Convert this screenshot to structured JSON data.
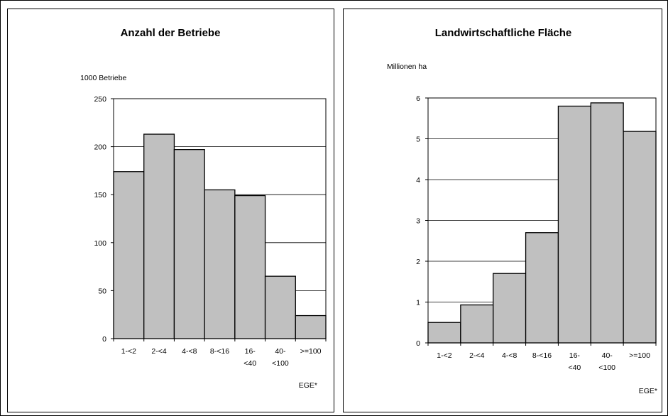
{
  "chart_data": [
    {
      "type": "bar",
      "title": "Anzahl der Betriebe",
      "ylabel": "1000 Betriebe",
      "xlabel": "EGE*",
      "categories": [
        [
          "1-<2"
        ],
        [
          "2-<4"
        ],
        [
          "4-<8"
        ],
        [
          "8-<16"
        ],
        [
          "16-",
          "<40"
        ],
        [
          "40-",
          "<100"
        ],
        [
          ">=100"
        ]
      ],
      "values": [
        174,
        213,
        197,
        155,
        149,
        65,
        24
      ],
      "ylim": [
        0,
        250
      ],
      "yticks": [
        "0",
        "50",
        "100",
        "150",
        "200",
        "250"
      ],
      "grid": true,
      "bar_color": "#c0c0c0"
    },
    {
      "type": "bar",
      "title": "Landwirtschaftliche Fläche",
      "ylabel": "Millionen ha",
      "xlabel": "EGE*",
      "categories": [
        [
          "1-<2"
        ],
        [
          "2-<4"
        ],
        [
          "4-<8"
        ],
        [
          "8-<16"
        ],
        [
          "16-",
          "<40"
        ],
        [
          "40-",
          "<100"
        ],
        [
          ">=100"
        ]
      ],
      "values": [
        0.5,
        0.93,
        1.7,
        2.7,
        5.8,
        5.88,
        5.18
      ],
      "ylim": [
        0,
        6
      ],
      "yticks": [
        "0",
        "1",
        "2",
        "3",
        "4",
        "5",
        "6"
      ],
      "grid": true,
      "bar_color": "#c0c0c0"
    }
  ]
}
